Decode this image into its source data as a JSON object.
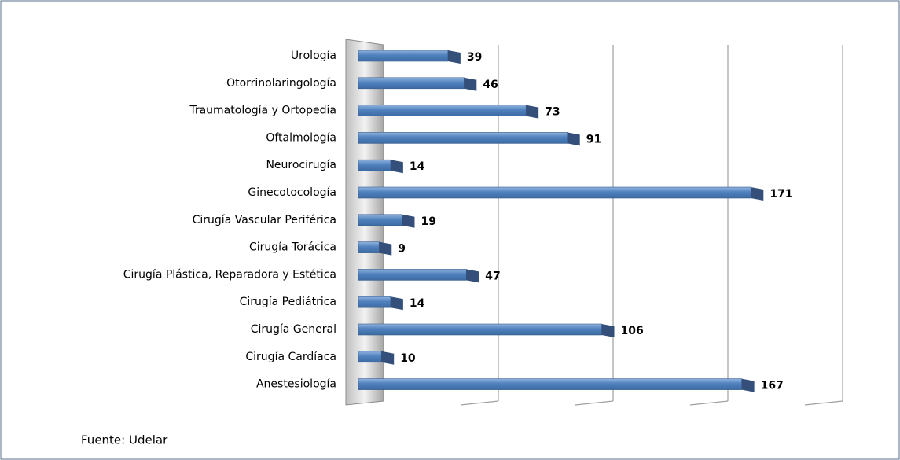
{
  "chart_data": {
    "type": "bar",
    "orientation": "horizontal",
    "categories": [
      "Urología",
      "Otorrinolaringología",
      "Traumatología y Ortopedia",
      "Oftalmología",
      "Neurocirugía",
      "Ginecotocología",
      "Cirugía Vascular Periférica",
      "Cirugía Torácica",
      "Cirugía Plástica, Reparadora y Estética",
      "Cirugía Pediátrica",
      "Cirugía General",
      "Cirugía Cardíaca",
      "Anestesiología"
    ],
    "values": [
      39,
      46,
      73,
      91,
      14,
      171,
      19,
      9,
      47,
      14,
      106,
      10,
      167
    ],
    "color": "#4f81bd",
    "xlim": [
      0,
      200
    ],
    "xticks": [
      0,
      50,
      100,
      150,
      200
    ],
    "grid": true,
    "note": "Fuente: Udelar"
  }
}
